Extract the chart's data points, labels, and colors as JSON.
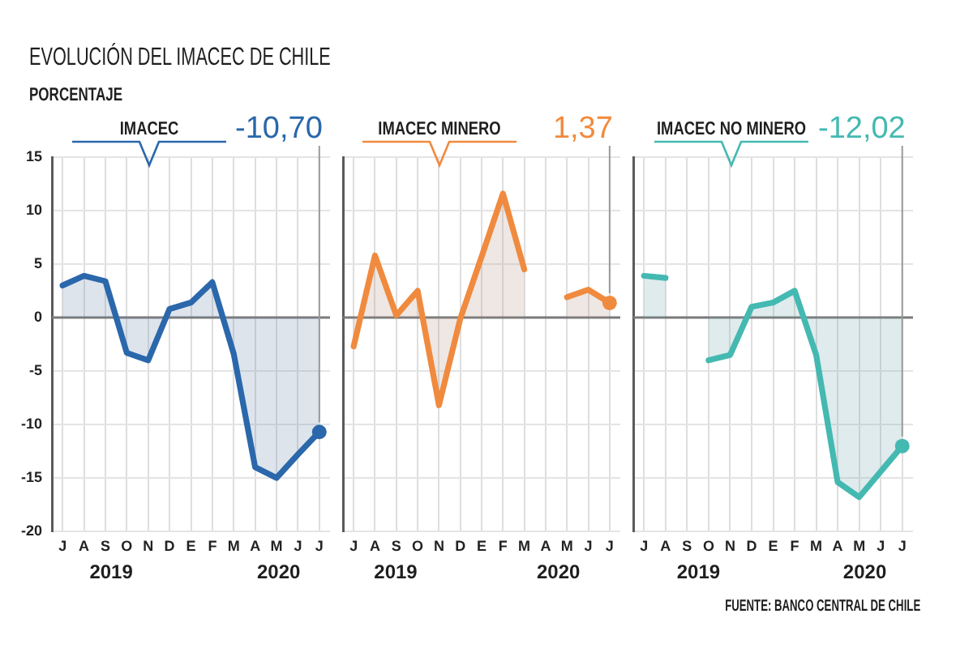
{
  "chart_data": [
    {
      "type": "area",
      "title": "EVOLUCIÓN DEL IMACEC DE CHILE",
      "subtitle": "PORCENTAJE",
      "categories": [
        "J",
        "A",
        "S",
        "O",
        "N",
        "D",
        "E",
        "F",
        "M",
        "A",
        "M",
        "J",
        "J"
      ],
      "series": [
        {
          "name": "IMACEC",
          "color": "#2b67ab",
          "values": [
            3.0,
            3.9,
            3.4,
            -3.3,
            -4.0,
            0.8,
            1.4,
            3.3,
            -3.4,
            -14.0,
            -15.0,
            -12.8,
            -10.7
          ],
          "value_labels": [
            null,
            null,
            null,
            null,
            null,
            null,
            null,
            null,
            null,
            null,
            null,
            null,
            "-10,70"
          ]
        }
      ],
      "ylim": [
        -20,
        15
      ],
      "yticks": [
        -20,
        -15,
        -10,
        -5,
        0,
        5,
        10,
        15
      ],
      "grid": true,
      "ref_lines": [
        {
          "axis": "y",
          "value": 0,
          "color": "#7a7a7a"
        }
      ],
      "annotations": [
        "2019",
        "2020"
      ]
    },
    {
      "type": "area",
      "categories": [
        "J",
        "A",
        "S",
        "O",
        "N",
        "D",
        "E",
        "F",
        "M",
        "A",
        "M",
        "J",
        "J"
      ],
      "series": [
        {
          "name": "IMACEC MINERO",
          "color": "#f08a3e",
          "values": [
            -2.7,
            5.8,
            0.2,
            2.5,
            -8.2,
            -0.1,
            5.7,
            11.6,
            4.5,
            null,
            1.9,
            2.6,
            1.37
          ],
          "value_labels": [
            null,
            null,
            null,
            null,
            null,
            null,
            null,
            null,
            null,
            null,
            null,
            null,
            "1,37"
          ]
        }
      ],
      "ylim": [
        -20,
        15
      ],
      "yticks": [
        -20,
        -15,
        -10,
        -5,
        0,
        5,
        10,
        15
      ],
      "tick_labels": "x",
      "grid": true,
      "ref_lines": [
        {
          "axis": "y",
          "value": 0,
          "color": "#7a7a7a"
        }
      ],
      "annotations": [
        "2019",
        "2020"
      ]
    },
    {
      "type": "area",
      "categories": [
        "J",
        "A",
        "S",
        "O",
        "N",
        "D",
        "E",
        "F",
        "M",
        "A",
        "M",
        "J",
        "J"
      ],
      "series": [
        {
          "name": "IMACEC NO MINERO",
          "color": "#44b9b1",
          "values": [
            3.9,
            3.7,
            null,
            -4.0,
            -3.5,
            1.0,
            1.4,
            2.5,
            -3.5,
            -15.4,
            -16.8,
            -14.4,
            -12.02
          ],
          "value_labels": [
            null,
            null,
            null,
            null,
            null,
            null,
            null,
            null,
            null,
            null,
            null,
            null,
            "-12,02"
          ]
        }
      ],
      "ylim": [
        -20,
        15
      ],
      "yticks": [
        -20,
        -15,
        -10,
        -5,
        0,
        5,
        10,
        15
      ],
      "tick_labels": "x",
      "grid": true,
      "ref_lines": [
        {
          "axis": "y",
          "value": 0,
          "color": "#7a7a7a"
        }
      ],
      "annotations": [
        "2019",
        "2020",
        "FUENTE: BANCO CENTRAL DE CHILE"
      ]
    }
  ]
}
